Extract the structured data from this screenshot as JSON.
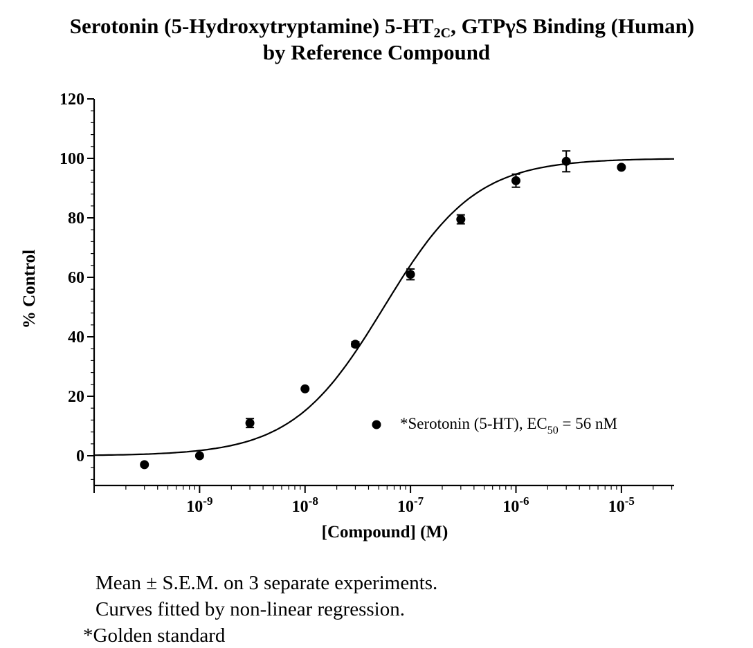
{
  "title": {
    "line1_prefix": "Serotonin (5-Hydroxytryptamine) 5-HT",
    "line1_sub": "2C",
    "line1_suffix": ", GTPγS  Binding (Human)",
    "line2": "by Reference Compound"
  },
  "chart_data": {
    "type": "scatter",
    "title": "Serotonin (5-Hydroxytryptamine) 5-HT2C, GTPγS  Binding (Human) by Reference Compound",
    "xlabel": "[Compound] (M)",
    "ylabel": "% Control",
    "xscale": "log",
    "xlim": [
      1e-10,
      3.16e-05
    ],
    "ylim": [
      -10,
      120
    ],
    "yticks": [
      0,
      20,
      40,
      60,
      80,
      100,
      120
    ],
    "xtick_exponents": [
      "-9",
      "-8",
      "-7",
      "-6",
      "-5"
    ],
    "xtick_base": "10",
    "series": [
      {
        "name": "*Serotonin (5-HT), EC50 = 56 nM",
        "x": [
          3e-10,
          1e-09,
          3e-09,
          1e-08,
          3e-08,
          1e-07,
          3e-07,
          1e-06,
          3e-06,
          1e-05
        ],
        "y": [
          -3,
          0,
          11,
          22.5,
          37.5,
          61,
          79.5,
          92.5,
          99,
          97
        ],
        "sem": [
          0,
          0,
          1.5,
          0,
          0.8,
          1.8,
          1.5,
          2.2,
          3.5,
          0
        ],
        "color": "#000000"
      }
    ],
    "fit": {
      "model": "sigmoidal dose-response (non-linear regression)",
      "bottom": 0,
      "top": 100,
      "ec50_molar": 5.6e-08,
      "hill": 1
    },
    "legend": {
      "label_prefix": "*Serotonin (5-HT), EC",
      "label_sub": "50",
      "label_suffix": " = 56 nM",
      "position": "bottom-right"
    },
    "grid": false
  },
  "notes": [
    "Mean ± S.E.M. on 3 separate experiments.",
    "Curves fitted by non-linear regression.",
    "*Golden standard"
  ]
}
